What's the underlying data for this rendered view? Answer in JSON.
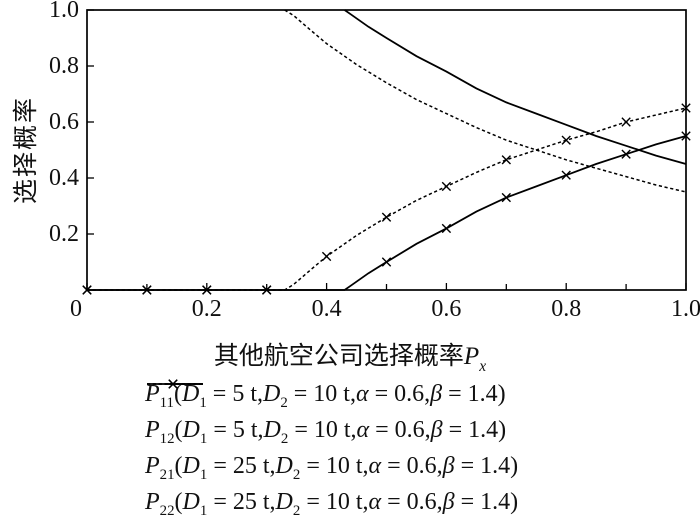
{
  "figure": {
    "background": "#ffffff",
    "line_color": "#000000"
  },
  "chart_data": {
    "type": "line",
    "title": "",
    "ylabel": "选择概率",
    "xlabel_parts": [
      {
        "t": "其他航空公司选择概率"
      },
      {
        "t": "P",
        "i": 1
      },
      {
        "t": "x",
        "s": 1,
        "i": 1
      }
    ],
    "xlim": [
      0,
      1
    ],
    "ylim": [
      0,
      1
    ],
    "grid": false,
    "legend_position": "below",
    "xticks": [
      {
        "v": 0,
        "label": "0",
        "dx": -11
      },
      {
        "v": 0.2,
        "label": "0.2"
      },
      {
        "v": 0.4,
        "label": "0.4"
      },
      {
        "v": 0.6,
        "label": "0.6"
      },
      {
        "v": 0.8,
        "label": "0.8"
      },
      {
        "v": 1.0,
        "label": "1.0"
      }
    ],
    "xminor": [
      0.1,
      0.3,
      0.5,
      0.7,
      0.9
    ],
    "yticks": [
      {
        "v": 0.2,
        "label": "0.2"
      },
      {
        "v": 0.4,
        "label": "0.4"
      },
      {
        "v": 0.6,
        "label": "0.6"
      },
      {
        "v": 0.8,
        "label": "0.8"
      },
      {
        "v": 1.0,
        "label": "1.0"
      }
    ],
    "yminor": [],
    "series": [
      {
        "id": "P11",
        "style": "solid",
        "x": [
          0.43,
          0.44,
          0.47,
          0.5,
          0.55,
          0.6,
          0.65,
          0.7,
          0.75,
          0.8,
          0.85,
          0.9,
          0.95,
          1.0
        ],
        "y": [
          1.0,
          0.985,
          0.94,
          0.9,
          0.835,
          0.78,
          0.72,
          0.67,
          0.63,
          0.59,
          0.55,
          0.515,
          0.48,
          0.45
        ],
        "marker_x": []
      },
      {
        "id": "P12",
        "style": "solid",
        "x": [
          0,
          0.1,
          0.2,
          0.3,
          0.4,
          0.43,
          0.44,
          0.47,
          0.5,
          0.55,
          0.6,
          0.65,
          0.7,
          0.75,
          0.8,
          0.85,
          0.9,
          0.95,
          1.0
        ],
        "y": [
          0,
          0,
          0,
          0,
          0,
          0,
          0.015,
          0.06,
          0.1,
          0.165,
          0.22,
          0.28,
          0.33,
          0.37,
          0.41,
          0.45,
          0.485,
          0.52,
          0.55
        ],
        "marker_x": [
          0,
          0.1,
          0.2,
          0.3,
          0.5,
          0.6,
          0.7,
          0.8,
          0.9,
          1.0
        ]
      },
      {
        "id": "P21",
        "style": "dash",
        "x": [
          0.33,
          0.345,
          0.375,
          0.4,
          0.45,
          0.5,
          0.55,
          0.6,
          0.65,
          0.7,
          0.75,
          0.8,
          0.85,
          0.9,
          0.95,
          1.0
        ],
        "y": [
          1.0,
          0.98,
          0.925,
          0.88,
          0.805,
          0.74,
          0.68,
          0.63,
          0.58,
          0.535,
          0.5,
          0.465,
          0.435,
          0.405,
          0.375,
          0.35
        ],
        "marker_x": []
      },
      {
        "id": "P22",
        "style": "dash",
        "x": [
          0,
          0.1,
          0.2,
          0.3,
          0.33,
          0.345,
          0.375,
          0.4,
          0.45,
          0.5,
          0.55,
          0.6,
          0.65,
          0.7,
          0.75,
          0.8,
          0.85,
          0.9,
          0.95,
          1.0
        ],
        "y": [
          0,
          0,
          0,
          0,
          0,
          0.02,
          0.075,
          0.12,
          0.195,
          0.26,
          0.32,
          0.37,
          0.42,
          0.465,
          0.5,
          0.535,
          0.565,
          0.6,
          0.625,
          0.65
        ],
        "marker_x": [
          0,
          0.1,
          0.2,
          0.3,
          0.4,
          0.5,
          0.6,
          0.7,
          0.8,
          0.9,
          1.0
        ]
      }
    ],
    "legend": [
      {
        "series_id": "P11",
        "sample": "solid",
        "parts": [
          {
            "t": "P",
            "i": 1
          },
          {
            "t": "11",
            "s": 1
          },
          {
            "t": "("
          },
          {
            "t": "D",
            "i": 1
          },
          {
            "t": "1",
            "s": 1
          },
          {
            "t": " = 5 t,"
          },
          {
            "t": "D",
            "i": 1
          },
          {
            "t": "2",
            "s": 1
          },
          {
            "t": " = 10 t,"
          },
          {
            "t": "α",
            "i": 1
          },
          {
            "t": " = 0.6,"
          },
          {
            "t": "β",
            "i": 1
          },
          {
            "t": " = 1.4)"
          }
        ]
      },
      {
        "series_id": "P12",
        "sample": "solid-x",
        "parts": [
          {
            "t": "P",
            "i": 1
          },
          {
            "t": "12",
            "s": 1
          },
          {
            "t": "("
          },
          {
            "t": "D",
            "i": 1
          },
          {
            "t": "1",
            "s": 1
          },
          {
            "t": " = 5 t,"
          },
          {
            "t": "D",
            "i": 1
          },
          {
            "t": "2",
            "s": 1
          },
          {
            "t": " = 10 t,"
          },
          {
            "t": "α",
            "i": 1
          },
          {
            "t": " = 0.6,"
          },
          {
            "t": "β",
            "i": 1
          },
          {
            "t": " = 1.4)"
          }
        ]
      },
      {
        "series_id": "P21",
        "sample": "dash",
        "parts": [
          {
            "t": "P",
            "i": 1
          },
          {
            "t": "21",
            "s": 1
          },
          {
            "t": "("
          },
          {
            "t": "D",
            "i": 1
          },
          {
            "t": "1",
            "s": 1
          },
          {
            "t": " = 25 t,"
          },
          {
            "t": "D",
            "i": 1
          },
          {
            "t": "2",
            "s": 1
          },
          {
            "t": " = 10 t,"
          },
          {
            "t": "α",
            "i": 1
          },
          {
            "t": " = 0.6,"
          },
          {
            "t": "β",
            "i": 1
          },
          {
            "t": " = 1.4)"
          }
        ]
      },
      {
        "series_id": "P22",
        "sample": "dash-x",
        "parts": [
          {
            "t": "P",
            "i": 1
          },
          {
            "t": "22",
            "s": 1
          },
          {
            "t": "("
          },
          {
            "t": "D",
            "i": 1
          },
          {
            "t": "1",
            "s": 1
          },
          {
            "t": " = 25 t,"
          },
          {
            "t": "D",
            "i": 1
          },
          {
            "t": "2",
            "s": 1
          },
          {
            "t": " = 10 t,"
          },
          {
            "t": "α",
            "i": 1
          },
          {
            "t": " = 0.6,"
          },
          {
            "t": "β",
            "i": 1
          },
          {
            "t": " = 1.4)"
          }
        ]
      }
    ]
  }
}
